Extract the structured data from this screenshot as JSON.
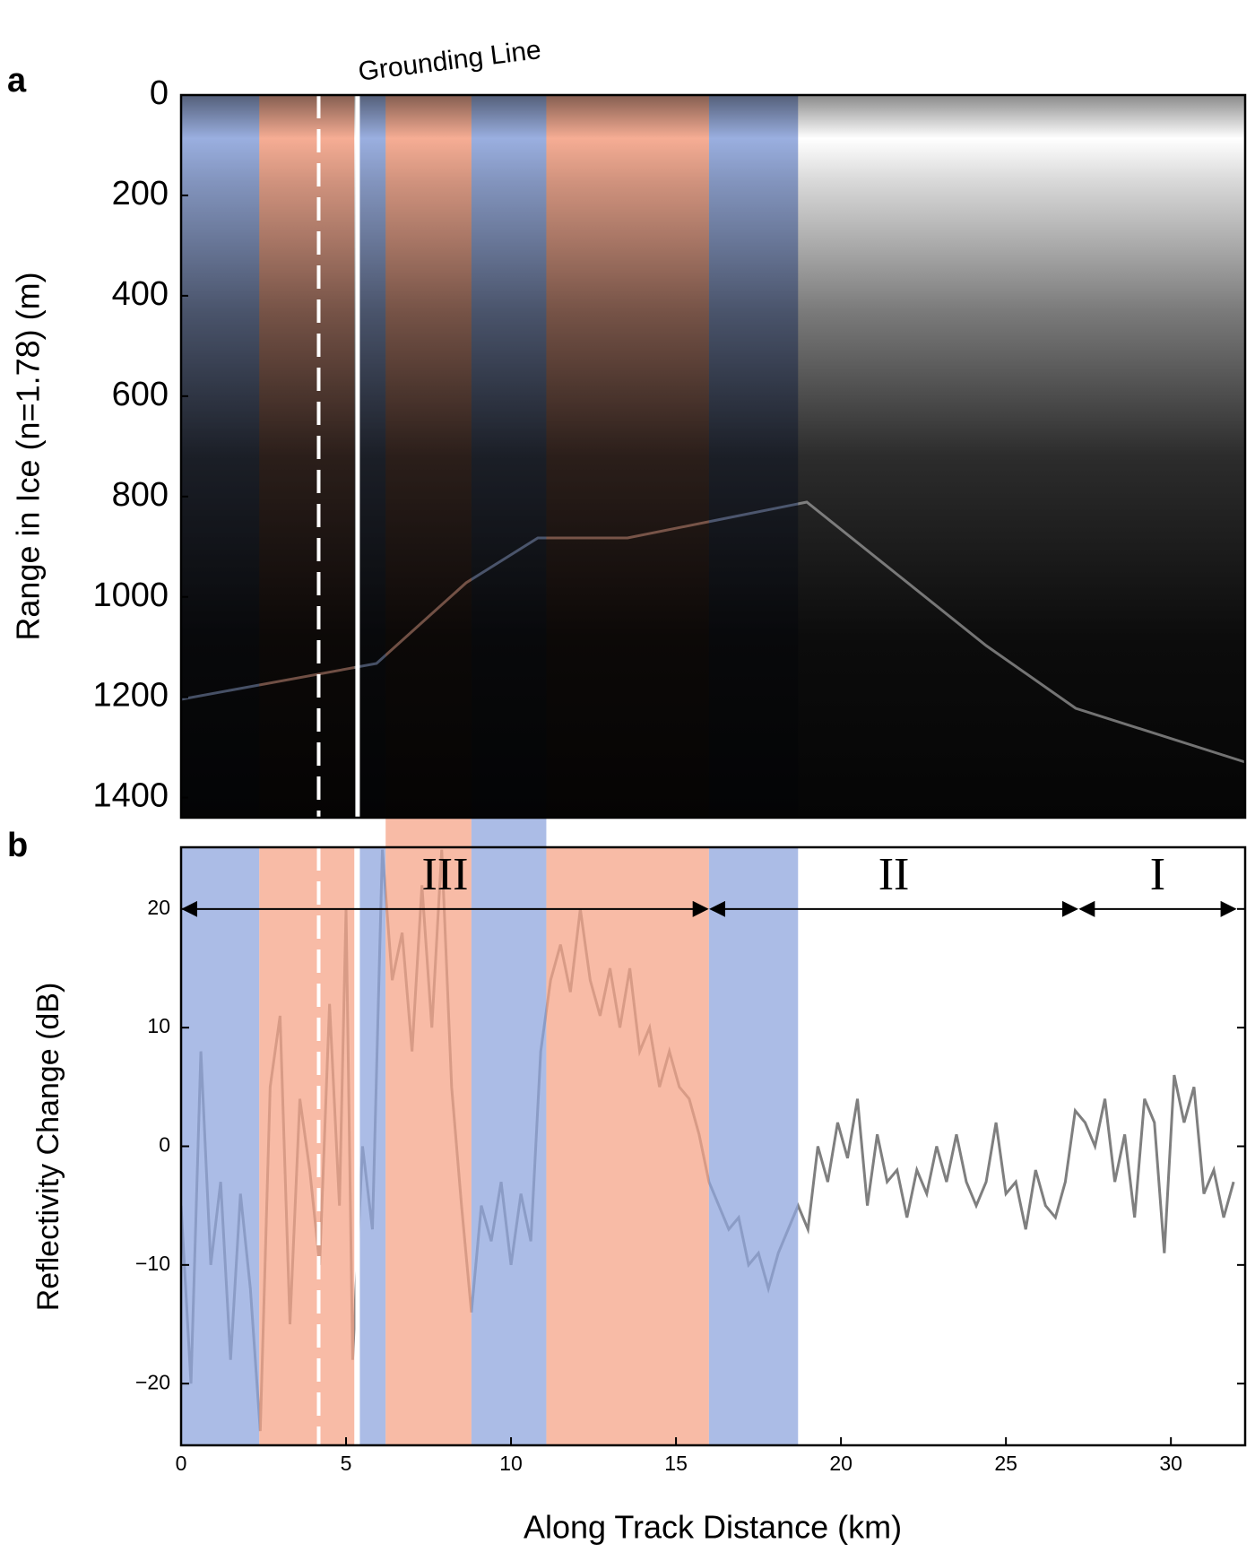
{
  "chart_data": [
    {
      "type": "image",
      "label": "a",
      "ylabel": "Range in Ice (n=1.78) (m)",
      "annotation": "Grounding Line",
      "ylim": [
        1440,
        0
      ],
      "yticks": [
        0,
        200,
        400,
        600,
        800,
        1000,
        1200,
        1400
      ]
    },
    {
      "type": "line",
      "label": "b",
      "xlabel": "Along Track Distance (km)",
      "ylabel": "Reflectivity Change (dB)",
      "xlim": [
        0,
        32.25
      ],
      "xticks": [
        0,
        5,
        10,
        15,
        20,
        25,
        30
      ],
      "ylim": [
        -25.2,
        25.2
      ],
      "yticks": [
        {
          "value": -20,
          "label": "−20"
        },
        {
          "value": -10,
          "label": "−10"
        },
        0,
        10,
        20
      ],
      "x": [
        0,
        0.3,
        0.6,
        0.9,
        1.2,
        1.5,
        1.8,
        2.1,
        2.4,
        2.7,
        3.0,
        3.3,
        3.6,
        3.9,
        4.2,
        4.5,
        4.8,
        5.0,
        5.2,
        5.5,
        5.8,
        6.1,
        6.4,
        6.7,
        7.0,
        7.3,
        7.6,
        7.9,
        8.2,
        8.5,
        8.8,
        9.1,
        9.4,
        9.7,
        10.0,
        10.3,
        10.6,
        10.9,
        11.2,
        11.5,
        11.8,
        12.1,
        12.4,
        12.7,
        13.0,
        13.3,
        13.6,
        13.9,
        14.2,
        14.5,
        14.8,
        15.1,
        15.4,
        15.7,
        16.0,
        16.3,
        16.6,
        16.9,
        17.2,
        17.5,
        17.8,
        18.1,
        18.4,
        18.7,
        19.0,
        19.3,
        19.6,
        19.9,
        20.2,
        20.5,
        20.8,
        21.1,
        21.4,
        21.7,
        22.0,
        22.3,
        22.6,
        22.9,
        23.2,
        23.5,
        23.8,
        24.1,
        24.4,
        24.7,
        25.0,
        25.3,
        25.6,
        25.9,
        26.2,
        26.5,
        26.8,
        27.1,
        27.4,
        27.7,
        28.0,
        28.3,
        28.6,
        28.9,
        29.2,
        29.5,
        29.8,
        30.1,
        30.4,
        30.7,
        31.0,
        31.3,
        31.6,
        31.9
      ],
      "series": [
        {
          "color": "#7f7f7f",
          "values": [
            -5,
            -20,
            8,
            -10,
            -3,
            -18,
            -4,
            -12,
            -24,
            5,
            11,
            -15,
            4,
            -2,
            -10,
            12,
            -5,
            20,
            -18,
            0,
            -7,
            25,
            14,
            18,
            8,
            22,
            10,
            25,
            5,
            -5,
            -14,
            -5,
            -8,
            -3,
            -10,
            -4,
            -8,
            8,
            14,
            17,
            13,
            20,
            14,
            11,
            15,
            10,
            15,
            8,
            10,
            5,
            8,
            5,
            4,
            1,
            -3,
            -5,
            -7,
            -6,
            -10,
            -9,
            -12,
            -9,
            -7,
            -5,
            -7,
            0,
            -3,
            2,
            -1,
            4,
            -5,
            1,
            -3,
            -2,
            -6,
            -2,
            -4,
            0,
            -3,
            1,
            -3,
            -5,
            -3,
            2,
            -4,
            -3,
            -7,
            -2,
            -5,
            -6,
            -3,
            3,
            2,
            0,
            4,
            -3,
            1,
            -6,
            4,
            2,
            -9,
            6,
            2,
            5,
            -4,
            -2,
            -6,
            -3
          ]
        }
      ],
      "regions": [
        {
          "x": [
            0,
            2.37
          ],
          "color": "#8fa6dd"
        },
        {
          "x": [
            2.37,
            5.25
          ],
          "color": "#f5a488"
        },
        {
          "x": [
            5.4,
            6.2
          ],
          "color": "#8fa6dd"
        },
        {
          "x": [
            6.2,
            8.8
          ],
          "color": "#f5a488",
          "bridge": true
        },
        {
          "x": [
            8.8,
            11.07
          ],
          "color": "#8fa6dd",
          "bridge": true
        },
        {
          "x": [
            11.07,
            16.0
          ],
          "color": "#f5a488"
        },
        {
          "x": [
            16.0,
            18.7
          ],
          "color": "#8fa6dd"
        }
      ],
      "vlines": [
        {
          "x": 4.17,
          "style": "dashed"
        },
        {
          "x": 5.35,
          "style": "solid"
        }
      ],
      "zone_y": 20,
      "zones": [
        {
          "label": "III",
          "x": [
            0,
            16.0
          ]
        },
        {
          "label": "II",
          "x": [
            16.0,
            27.2
          ]
        },
        {
          "label": "I",
          "x": [
            27.2,
            32
          ]
        }
      ]
    }
  ]
}
